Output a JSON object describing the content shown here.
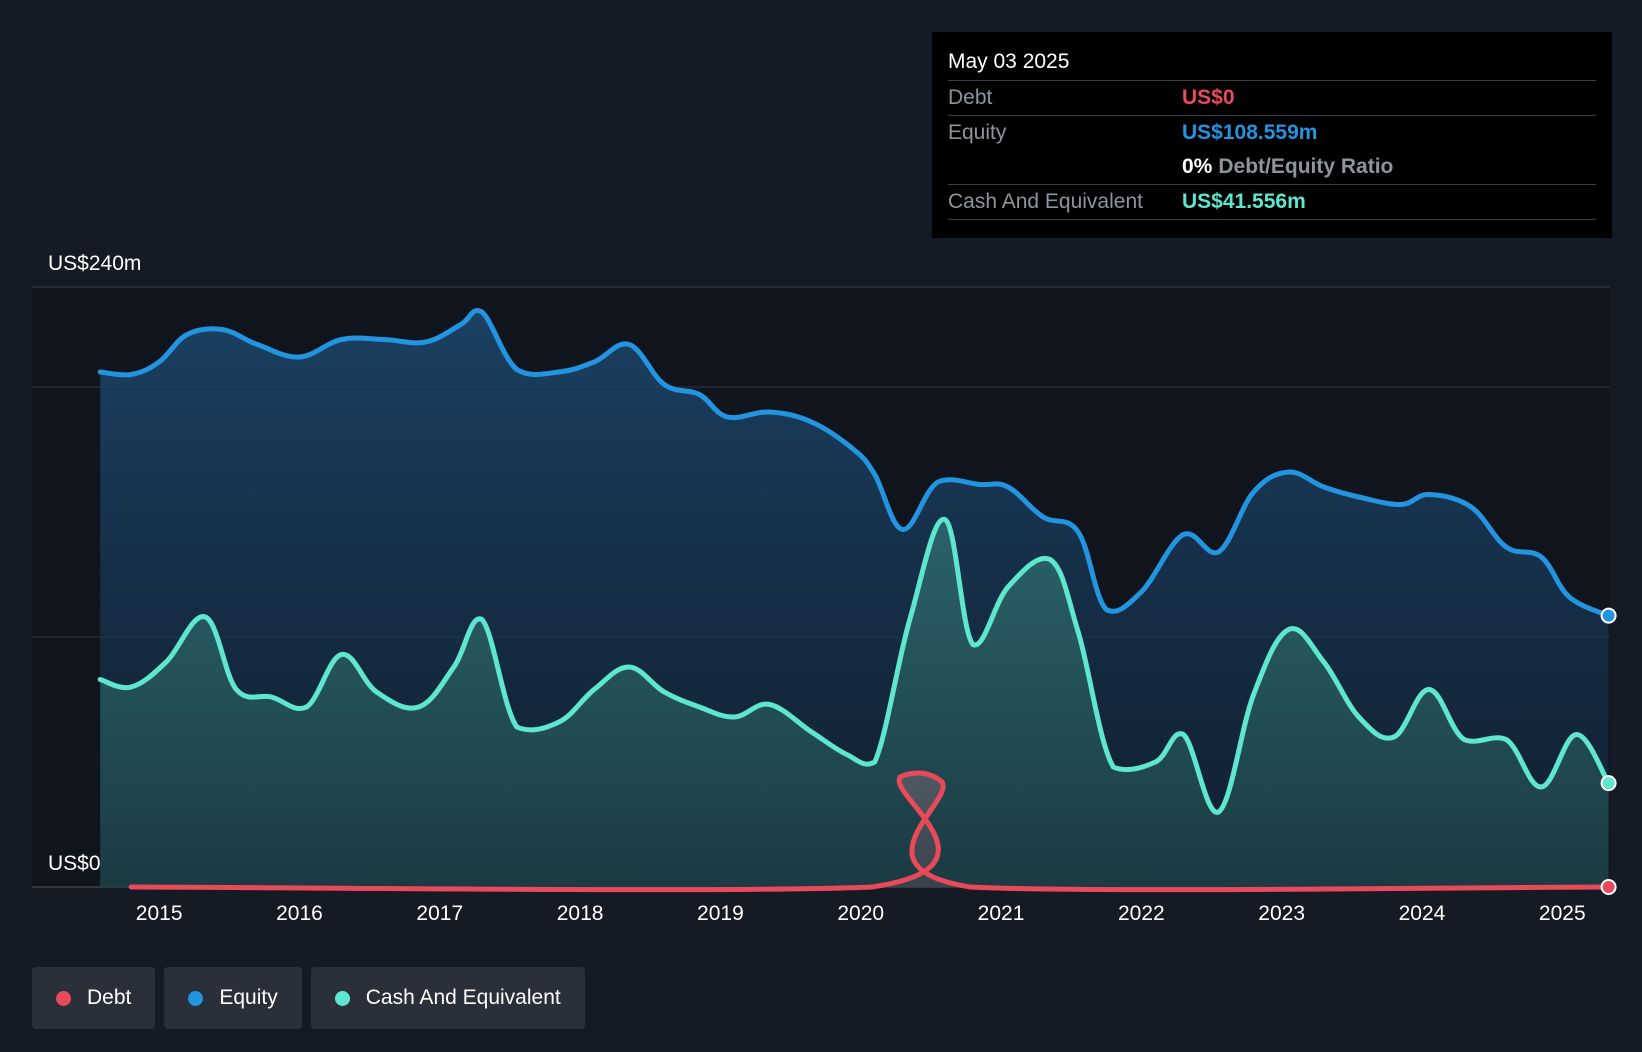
{
  "tooltip": {
    "date": "May 03 2025",
    "debt_label": "Debt",
    "debt_value": "US$0",
    "equity_label": "Equity",
    "equity_value": "US$108.559m",
    "ratio_value": "0%",
    "ratio_label": "Debt/Equity Ratio",
    "cash_label": "Cash And Equivalent",
    "cash_value": "US$41.556m"
  },
  "legend": {
    "debt": "Debt",
    "equity": "Equity",
    "cash": "Cash And Equivalent"
  },
  "colors": {
    "debt": "#e84a5a",
    "equity": "#2394e0",
    "cash": "#5fe6cf",
    "background": "#151b24",
    "plot_background": "#10151d",
    "grid": "#2d3540",
    "text": "#ffffff",
    "muted": "#8e949c"
  },
  "chart_data": {
    "type": "area",
    "y_label_top": "US$240m",
    "y_label_bottom": "US$0",
    "ylim": [
      0,
      240
    ],
    "gridlines": [
      100,
      200,
      240
    ],
    "xlim": [
      2014.55,
      2025.34
    ],
    "x_ticks": [
      2015,
      2016,
      2017,
      2018,
      2019,
      2020,
      2021,
      2022,
      2023,
      2024,
      2025
    ],
    "x_tick_labels": [
      "2015",
      "2016",
      "2017",
      "2018",
      "2019",
      "2020",
      "2021",
      "2022",
      "2023",
      "2024",
      "2025"
    ],
    "legend_position": "bottom-left",
    "series": [
      {
        "name": "Equity",
        "key": "equity",
        "points": [
          [
            2014.58,
            206
          ],
          [
            2014.8,
            205
          ],
          [
            2015.0,
            210
          ],
          [
            2015.2,
            221
          ],
          [
            2015.45,
            223
          ],
          [
            2015.7,
            217
          ],
          [
            2016.0,
            212
          ],
          [
            2016.3,
            219
          ],
          [
            2016.6,
            219
          ],
          [
            2016.9,
            218
          ],
          [
            2017.15,
            225
          ],
          [
            2017.3,
            230
          ],
          [
            2017.55,
            207
          ],
          [
            2017.85,
            206
          ],
          [
            2018.1,
            210
          ],
          [
            2018.35,
            217
          ],
          [
            2018.6,
            201
          ],
          [
            2018.85,
            197
          ],
          [
            2019.05,
            188
          ],
          [
            2019.35,
            190
          ],
          [
            2019.65,
            186
          ],
          [
            2019.95,
            175
          ],
          [
            2020.1,
            165
          ],
          [
            2020.3,
            143
          ],
          [
            2020.55,
            162
          ],
          [
            2020.85,
            161
          ],
          [
            2021.05,
            160
          ],
          [
            2021.3,
            148
          ],
          [
            2021.55,
            142
          ],
          [
            2021.75,
            111
          ],
          [
            2022.0,
            118
          ],
          [
            2022.3,
            141
          ],
          [
            2022.55,
            134
          ],
          [
            2022.8,
            158
          ],
          [
            2023.05,
            166
          ],
          [
            2023.3,
            160
          ],
          [
            2023.55,
            156
          ],
          [
            2023.85,
            153
          ],
          [
            2024.05,
            157
          ],
          [
            2024.35,
            152
          ],
          [
            2024.6,
            136
          ],
          [
            2024.85,
            132
          ],
          [
            2025.05,
            116
          ],
          [
            2025.33,
            108.559
          ]
        ]
      },
      {
        "name": "Cash And Equivalent",
        "key": "cash",
        "points": [
          [
            2014.58,
            83
          ],
          [
            2014.8,
            80
          ],
          [
            2015.05,
            90
          ],
          [
            2015.33,
            108
          ],
          [
            2015.55,
            79
          ],
          [
            2015.8,
            76
          ],
          [
            2016.05,
            72
          ],
          [
            2016.3,
            93
          ],
          [
            2016.55,
            78
          ],
          [
            2016.85,
            72
          ],
          [
            2017.1,
            88
          ],
          [
            2017.3,
            107
          ],
          [
            2017.55,
            64
          ],
          [
            2017.85,
            66
          ],
          [
            2018.1,
            79
          ],
          [
            2018.35,
            88
          ],
          [
            2018.6,
            78
          ],
          [
            2018.85,
            72
          ],
          [
            2019.1,
            68
          ],
          [
            2019.35,
            73
          ],
          [
            2019.65,
            62
          ],
          [
            2019.9,
            53
          ],
          [
            2020.1,
            50
          ],
          [
            2020.35,
            107
          ],
          [
            2020.6,
            147
          ],
          [
            2020.8,
            97
          ],
          [
            2021.05,
            120
          ],
          [
            2021.35,
            131
          ],
          [
            2021.55,
            102
          ],
          [
            2021.8,
            48
          ],
          [
            2022.1,
            50
          ],
          [
            2022.3,
            61
          ],
          [
            2022.55,
            30
          ],
          [
            2022.8,
            77
          ],
          [
            2023.05,
            103
          ],
          [
            2023.3,
            90
          ],
          [
            2023.55,
            68
          ],
          [
            2023.8,
            60
          ],
          [
            2024.05,
            79
          ],
          [
            2024.3,
            59
          ],
          [
            2024.6,
            59
          ],
          [
            2024.85,
            40
          ],
          [
            2025.1,
            61
          ],
          [
            2025.33,
            41.556
          ]
        ]
      },
      {
        "name": "Debt",
        "key": "debt",
        "points": [
          [
            2014.8,
            0
          ],
          [
            2020.08,
            0
          ],
          [
            2020.28,
            44
          ],
          [
            2020.58,
            42
          ],
          [
            2020.78,
            0
          ],
          [
            2025.33,
            0
          ]
        ]
      }
    ]
  }
}
